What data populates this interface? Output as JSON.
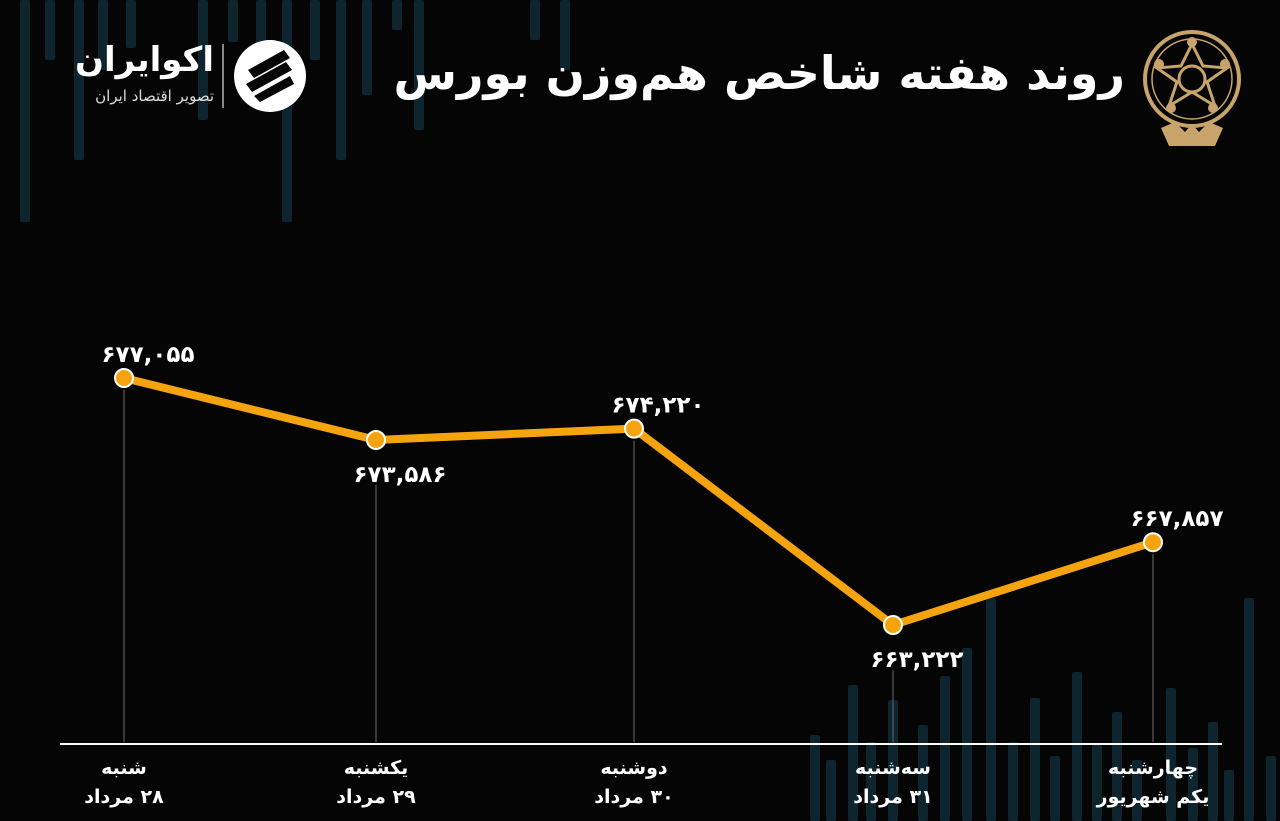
{
  "header": {
    "title": "روند هفته شاخص هم‌وزن بورس",
    "brand_name": "اکوایران",
    "brand_tagline": "تصویر اقتصاد ایران",
    "brand_logo_icon": "ecoiran-stripes-logo-icon",
    "seal_icon": "tehran-stock-exchange-seal-icon"
  },
  "colors": {
    "background": "#050505",
    "line": "#f5a30f",
    "marker_fill": "#f5a30f",
    "marker_stroke": "#ffffff",
    "axis": "#ffffff",
    "guide": "#6b6b6b",
    "seal": "#c9a46a"
  },
  "chart_data": {
    "type": "line",
    "title": "روند هفته شاخص هم‌وزن بورس",
    "xlabel": "",
    "ylabel": "",
    "grid": false,
    "legend": "none",
    "ylim": [
      660000,
      680000
    ],
    "categories": [
      {
        "day": "شنبه",
        "date": "۲۸ مرداد"
      },
      {
        "day": "یکشنبه",
        "date": "۲۹ مرداد"
      },
      {
        "day": "دوشنبه",
        "date": "۳۰ مرداد"
      },
      {
        "day": "سه‌شنبه",
        "date": "۳۱ مرداد"
      },
      {
        "day": "چهارشنبه",
        "date": "یکم شهریور"
      }
    ],
    "series": [
      {
        "values": [
          677055,
          673586,
          674220,
          663222,
          667857
        ],
        "labels": [
          "۶۷۷,۰۵۵",
          "۶۷۳,۵۸۶",
          "۶۷۴,۲۲۰",
          "۶۶۳,۲۲۲",
          "۶۶۷,۸۵۷"
        ],
        "label_positions": [
          "above",
          "below",
          "above",
          "below",
          "above"
        ]
      }
    ]
  }
}
